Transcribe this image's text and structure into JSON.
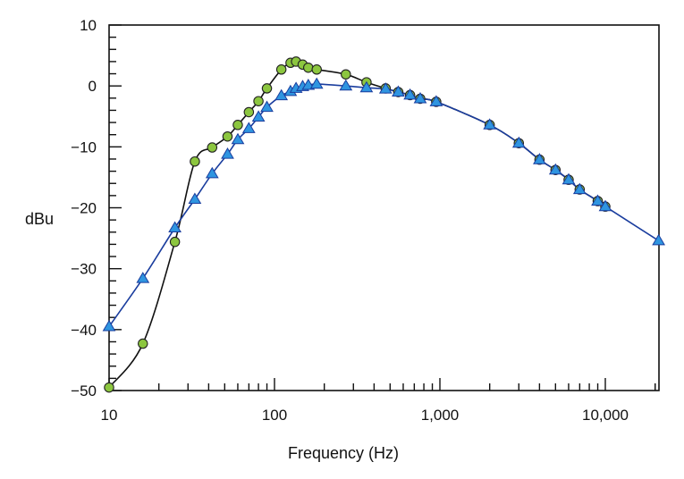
{
  "chart_data": {
    "type": "line",
    "xlabel": "Frequency (Hz)",
    "ylabel": "dBu",
    "x_scale": "log",
    "xlim": [
      10,
      22000
    ],
    "ylim": [
      -50,
      10
    ],
    "grid": false,
    "legend": "none",
    "x_tick_labels": [
      {
        "value": 10,
        "label": "10"
      },
      {
        "value": 100,
        "label": "100"
      },
      {
        "value": 1000,
        "label": "1,000"
      },
      {
        "value": 10000,
        "label": "10,000"
      }
    ],
    "y_tick_labels": [
      {
        "value": 10,
        "label": "10"
      },
      {
        "value": 0,
        "label": "0"
      },
      {
        "value": -10,
        "label": "−10"
      },
      {
        "value": -20,
        "label": "−20"
      },
      {
        "value": -30,
        "label": "−30"
      },
      {
        "value": -40,
        "label": "−40"
      },
      {
        "value": -50,
        "label": "−50"
      }
    ],
    "series": [
      {
        "marker": "circle",
        "color": "#8cc63f",
        "line_color": "#111111",
        "x": [
          10,
          16,
          25,
          33,
          42,
          52,
          60,
          70,
          80,
          90,
          110,
          125,
          135,
          148,
          160,
          180,
          270,
          360,
          470,
          560,
          660,
          760,
          950,
          2000,
          3000,
          4000,
          5000,
          6000,
          7000,
          9000,
          10000
        ],
        "y": [
          -49.5,
          -42.3,
          -25.6,
          -12.4,
          -10.1,
          -8.3,
          -6.4,
          -4.3,
          -2.5,
          -0.4,
          2.7,
          3.8,
          4.0,
          3.5,
          3.0,
          2.7,
          1.9,
          0.6,
          -0.4,
          -1.0,
          -1.5,
          -2.1,
          -2.6,
          -6.4,
          -9.4,
          -12.1,
          -13.8,
          -15.4,
          -17.0,
          -18.9,
          -19.8
        ]
      },
      {
        "marker": "triangle",
        "color": "#2f95e0",
        "line_color": "#1a3d9e",
        "x": [
          10,
          16,
          25,
          33,
          42,
          52,
          60,
          70,
          80,
          90,
          110,
          125,
          135,
          148,
          160,
          180,
          270,
          360,
          470,
          560,
          660,
          760,
          950,
          2000,
          3000,
          4000,
          5000,
          6000,
          7000,
          9000,
          10000,
          21000
        ],
        "y": [
          -39.5,
          -31.6,
          -23.3,
          -18.6,
          -14.4,
          -11.2,
          -8.8,
          -7.0,
          -5.1,
          -3.5,
          -1.6,
          -0.9,
          -0.4,
          -0.1,
          0.1,
          0.3,
          0.0,
          -0.3,
          -0.5,
          -1.0,
          -1.5,
          -2.1,
          -2.6,
          -6.4,
          -9.4,
          -12.1,
          -13.8,
          -15.4,
          -17.0,
          -18.9,
          -19.8,
          -25.4
        ]
      }
    ]
  }
}
